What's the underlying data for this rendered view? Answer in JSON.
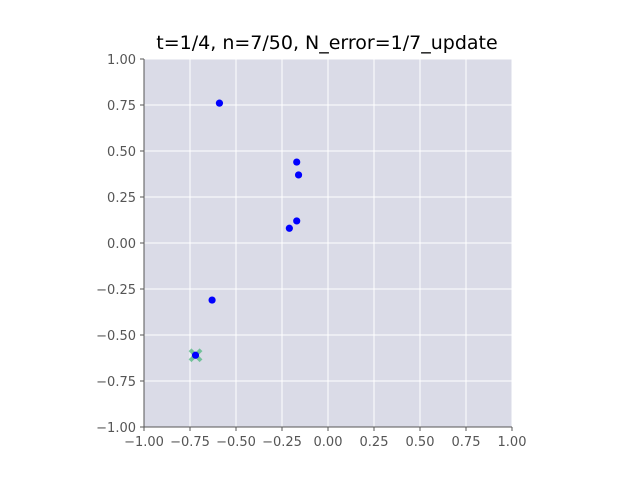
{
  "chart_data": {
    "type": "scatter",
    "title": "t=1/4, n=7/50, N_error=1/7_update",
    "xlabel": "",
    "ylabel": "",
    "xlim": [
      -1.0,
      1.0
    ],
    "ylim": [
      -1.0,
      1.0
    ],
    "grid": true,
    "xticks": [
      -1.0,
      -0.75,
      -0.5,
      -0.25,
      0.0,
      0.25,
      0.5,
      0.75,
      1.0
    ],
    "yticks": [
      -1.0,
      -0.75,
      -0.5,
      -0.25,
      0.0,
      0.25,
      0.5,
      0.75,
      1.0
    ],
    "xtick_labels": [
      "−1.00",
      "−0.75",
      "−0.50",
      "−0.25",
      "0.00",
      "0.25",
      "0.50",
      "0.75",
      "1.00"
    ],
    "ytick_labels": [
      "−1.00",
      "−0.75",
      "−0.50",
      "−0.25",
      "0.00",
      "0.25",
      "0.50",
      "0.75",
      "1.00"
    ],
    "series": [
      {
        "marker": "circle",
        "color": "#0000ff",
        "points": [
          {
            "x": -0.59,
            "y": 0.76
          },
          {
            "x": -0.17,
            "y": 0.44
          },
          {
            "x": -0.16,
            "y": 0.37
          },
          {
            "x": -0.17,
            "y": 0.12
          },
          {
            "x": -0.21,
            "y": 0.08
          },
          {
            "x": -0.63,
            "y": -0.31
          },
          {
            "x": -0.72,
            "y": -0.61
          }
        ]
      },
      {
        "marker": "x",
        "color": "#3cb371",
        "points": [
          {
            "x": -0.72,
            "y": -0.61
          }
        ]
      }
    ],
    "colors": {
      "plot_background": "#dadbe7",
      "grid": "#ffffff",
      "axis": "#555555"
    }
  }
}
